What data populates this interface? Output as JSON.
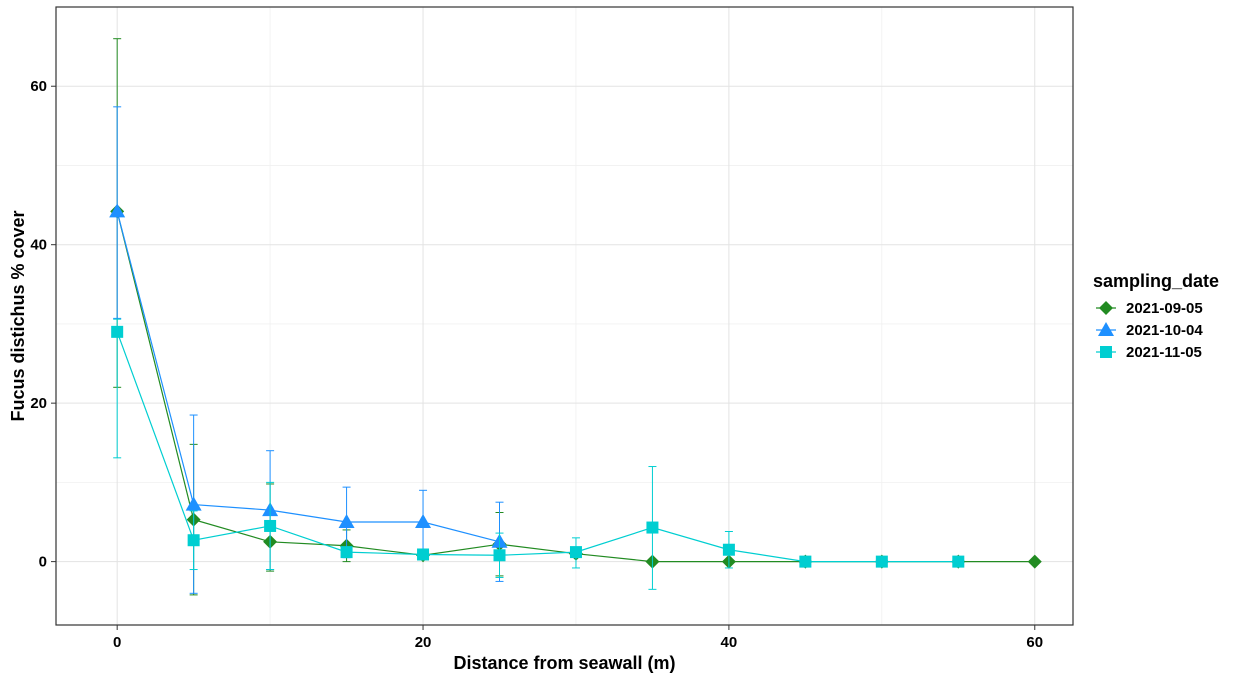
{
  "chart_data": {
    "type": "line",
    "xlabel": "Distance from seawall (m)",
    "ylabel": "Fucus distichus % cover",
    "xlim": [
      -4,
      62.5
    ],
    "ylim": [
      -8,
      70
    ],
    "x_ticks": [
      0,
      20,
      40,
      60
    ],
    "y_ticks": [
      0,
      20,
      40,
      60
    ],
    "grid": true,
    "error_bars": true,
    "legend": {
      "title": "sampling_date",
      "position": "right"
    },
    "series": [
      {
        "name": "2021-09-05",
        "color": "#228B22",
        "marker": "diamond",
        "points": [
          {
            "x": 0,
            "y": 44.2,
            "lo": 22.0,
            "hi": 66.0
          },
          {
            "x": 5,
            "y": 5.3,
            "lo": -4.2,
            "hi": 14.8
          },
          {
            "x": 10,
            "y": 2.5,
            "lo": -1.2,
            "hi": 9.8
          },
          {
            "x": 15,
            "y": 2.0,
            "lo": 0,
            "hi": 4.0
          },
          {
            "x": 20,
            "y": 0.8,
            "lo": 0.5,
            "hi": 1.1
          },
          {
            "x": 25,
            "y": 2.2,
            "lo": -1.8,
            "hi": 6.2
          },
          {
            "x": 30,
            "y": 1.0,
            "lo": 0.7,
            "hi": 1.3
          },
          {
            "x": 35,
            "y": 0,
            "lo": 0,
            "hi": 0
          },
          {
            "x": 40,
            "y": 0,
            "lo": 0,
            "hi": 0
          },
          {
            "x": 45,
            "y": 0,
            "lo": 0,
            "hi": 0
          },
          {
            "x": 50,
            "y": 0,
            "lo": 0,
            "hi": 0
          },
          {
            "x": 55,
            "y": 0,
            "lo": 0,
            "hi": 0
          },
          {
            "x": 60,
            "y": 0,
            "lo": 0,
            "hi": 0
          }
        ]
      },
      {
        "name": "2021-10-04",
        "color": "#1E90FF",
        "marker": "triangle",
        "points": [
          {
            "x": 0,
            "y": 44.2,
            "lo": 30.7,
            "hi": 57.4
          },
          {
            "x": 5,
            "y": 7.2,
            "lo": -4.0,
            "hi": 18.5
          },
          {
            "x": 10,
            "y": 6.5,
            "lo": -1.0,
            "hi": 14.0
          },
          {
            "x": 15,
            "y": 5.0,
            "lo": 0.5,
            "hi": 9.4
          },
          {
            "x": 20,
            "y": 5.0,
            "lo": 1.0,
            "hi": 9.0
          },
          {
            "x": 25,
            "y": 2.5,
            "lo": -2.5,
            "hi": 7.5
          }
        ]
      },
      {
        "name": "2021-11-05",
        "color": "#00CED1",
        "marker": "square",
        "points": [
          {
            "x": 0,
            "y": 29.0,
            "lo": 13.1,
            "hi": 30.6
          },
          {
            "x": 5,
            "y": 2.7,
            "lo": -1.0,
            "hi": 6.4
          },
          {
            "x": 10,
            "y": 4.5,
            "lo": -1.0,
            "hi": 10.0
          },
          {
            "x": 15,
            "y": 1.2,
            "lo": 0.8,
            "hi": 1.6
          },
          {
            "x": 20,
            "y": 0.9,
            "lo": 0.6,
            "hi": 1.2
          },
          {
            "x": 25,
            "y": 0.8,
            "lo": -2.0,
            "hi": 3.6
          },
          {
            "x": 30,
            "y": 1.2,
            "lo": -0.8,
            "hi": 3.0
          },
          {
            "x": 35,
            "y": 4.3,
            "lo": -3.5,
            "hi": 12.0
          },
          {
            "x": 40,
            "y": 1.5,
            "lo": -0.8,
            "hi": 3.8
          },
          {
            "x": 45,
            "y": 0,
            "lo": 0,
            "hi": 0
          },
          {
            "x": 50,
            "y": 0,
            "lo": 0,
            "hi": 0
          },
          {
            "x": 55,
            "y": 0,
            "lo": 0,
            "hi": 0
          }
        ]
      }
    ]
  }
}
